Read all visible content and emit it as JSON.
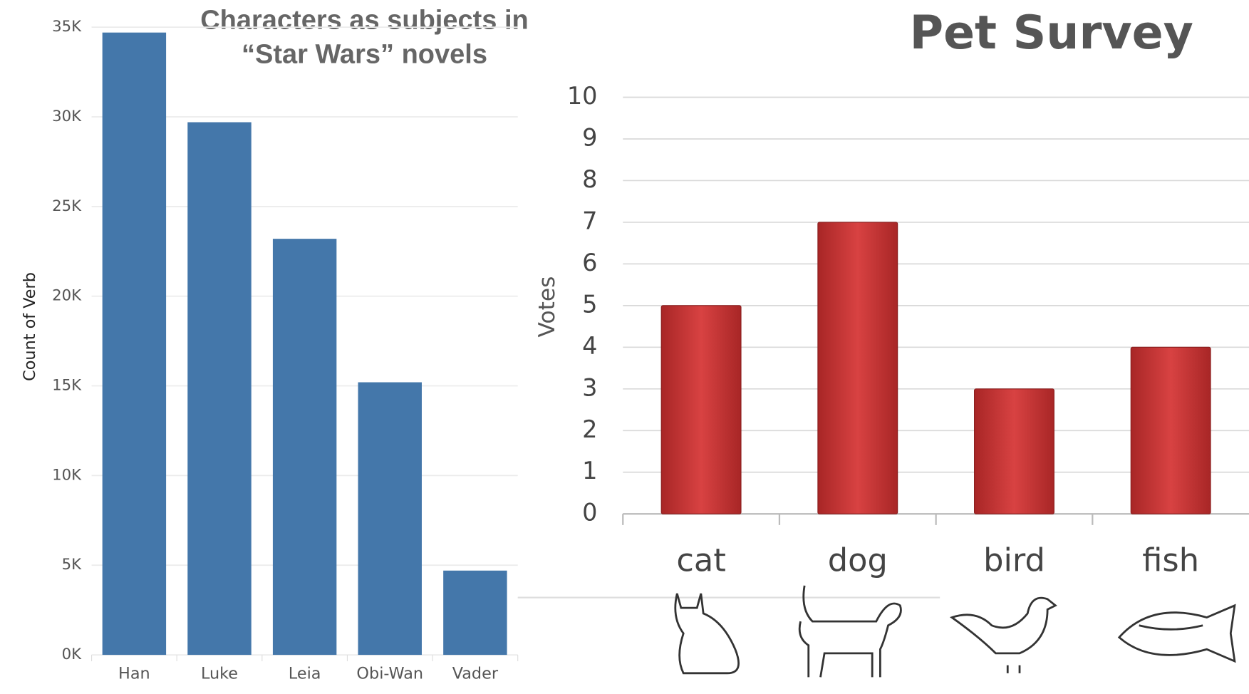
{
  "chart_data": [
    {
      "type": "bar",
      "title": "Characters as subjects in “Star Wars” novels",
      "y_label": "Count of Verb",
      "categories": [
        "Han",
        "Luke",
        "Leia",
        "Obi-Wan",
        "Vader"
      ],
      "values": [
        34700,
        29700,
        23200,
        15200,
        4700
      ],
      "color": "#4477aa",
      "ylim": [
        0,
        35000
      ],
      "yticks": [
        {
          "value": 0,
          "label": "0K"
        },
        {
          "value": 5000,
          "label": "5K"
        },
        {
          "value": 10000,
          "label": "10K"
        },
        {
          "value": 15000,
          "label": "15K"
        },
        {
          "value": 20000,
          "label": "20K"
        },
        {
          "value": 25000,
          "label": "25K"
        },
        {
          "value": 30000,
          "label": "30K"
        },
        {
          "value": 35000,
          "label": "35K"
        }
      ],
      "grid": true
    },
    {
      "type": "bar",
      "title": "Pet Survey",
      "y_label": "Votes",
      "categories": [
        "cat",
        "dog",
        "bird",
        "fish"
      ],
      "values": [
        5,
        7,
        3,
        4
      ],
      "color": "#c93232",
      "ylim": [
        0,
        10
      ],
      "yticks": [
        0,
        1,
        2,
        3,
        4,
        5,
        6,
        7,
        8,
        9,
        10
      ],
      "grid": true
    }
  ]
}
